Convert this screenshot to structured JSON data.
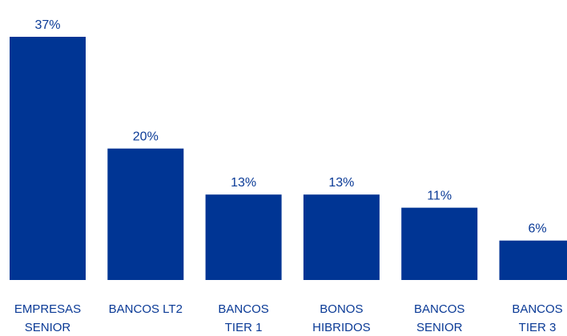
{
  "chart_data": {
    "type": "bar",
    "categories": [
      [
        "EMPRESAS",
        "SENIOR"
      ],
      [
        "BANCOS LT2"
      ],
      [
        "BANCOS",
        "TIER 1"
      ],
      [
        "BONOS",
        "HIBRIDOS"
      ],
      [
        "BANCOS",
        "SENIOR"
      ],
      [
        "BANCOS",
        "TIER 3"
      ]
    ],
    "values": [
      37,
      20,
      13,
      13,
      11,
      6
    ],
    "value_labels": [
      "37%",
      "20%",
      "13%",
      "13%",
      "11%",
      "6%"
    ],
    "color": "#003594"
  }
}
